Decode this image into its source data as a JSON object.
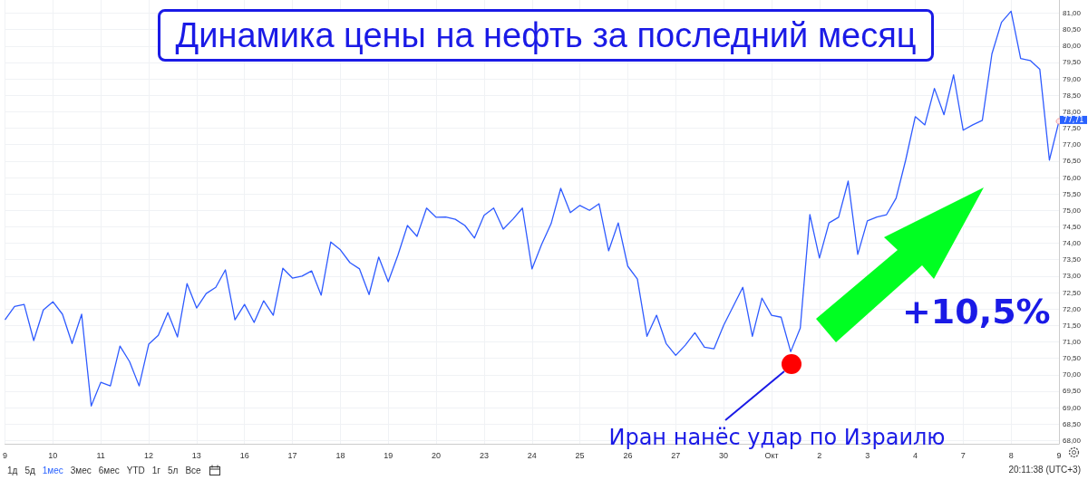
{
  "chart_data": {
    "type": "line",
    "title": "Динамика цены на нефть за последний месяц",
    "categories": [
      "9",
      null,
      null,
      null,
      null,
      "10",
      null,
      null,
      null,
      null,
      "11",
      null,
      null,
      null,
      null,
      "12",
      null,
      null,
      null,
      null,
      "13",
      null,
      null,
      null,
      null,
      "16",
      null,
      null,
      null,
      null,
      "17",
      null,
      null,
      null,
      null,
      "18",
      null,
      null,
      null,
      null,
      "19",
      null,
      null,
      null,
      null,
      "20",
      null,
      null,
      null,
      null,
      "23",
      null,
      null,
      null,
      null,
      "24",
      null,
      null,
      null,
      null,
      "25",
      null,
      null,
      null,
      null,
      "26",
      null,
      null,
      null,
      null,
      "27",
      null,
      null,
      null,
      null,
      "30",
      null,
      null,
      null,
      null,
      "Окт",
      null,
      null,
      null,
      null,
      "2",
      null,
      null,
      null,
      null,
      "3",
      null,
      null,
      null,
      null,
      "4",
      null,
      null,
      null,
      null,
      "7",
      null,
      null,
      null,
      null,
      "8",
      null,
      null,
      null,
      null,
      "9"
    ],
    "series": [
      {
        "color": "#2f5bff",
        "values": [
          71.67,
          72.08,
          72.14,
          71.04,
          71.97,
          72.22,
          71.84,
          70.95,
          71.84,
          69.05,
          69.77,
          69.66,
          70.87,
          70.4,
          69.66,
          70.93,
          71.2,
          71.89,
          71.15,
          72.77,
          72.03,
          72.47,
          72.66,
          73.19,
          71.67,
          72.14,
          71.59,
          72.25,
          71.81,
          73.24,
          72.94,
          73.0,
          73.16,
          72.42,
          74.04,
          73.8,
          73.41,
          73.22,
          72.44,
          73.58,
          72.83,
          73.63,
          74.54,
          74.21,
          75.07,
          74.79,
          74.8,
          74.73,
          74.54,
          74.16,
          74.85,
          75.07,
          74.43,
          74.73,
          75.07,
          73.22,
          73.96,
          74.6,
          75.67,
          74.93,
          75.15,
          75.0,
          75.2,
          73.77,
          74.62,
          73.3,
          72.91,
          71.17,
          71.81,
          70.95,
          70.59,
          70.9,
          71.28,
          70.84,
          70.79,
          71.5,
          72.08,
          72.66,
          71.17,
          72.33,
          71.81,
          71.75,
          70.7,
          71.42,
          74.87,
          73.55,
          74.62,
          74.79,
          75.89,
          73.66,
          74.68,
          74.8,
          74.87,
          75.37,
          76.53,
          77.85,
          77.6,
          78.71,
          77.91,
          79.12,
          77.44,
          77.6,
          77.74,
          79.76,
          80.72,
          81.06,
          79.62,
          79.56,
          79.29,
          76.53,
          77.71
        ]
      }
    ],
    "ylim": [
      67.9,
      81.4
    ],
    "yticks": [
      {
        "value": 68,
        "label": "68,00"
      },
      {
        "value": 68.5,
        "label": "68,50"
      },
      {
        "value": 69,
        "label": "69,00"
      },
      {
        "value": 69.5,
        "label": "69,50"
      },
      {
        "value": 70,
        "label": "70,00"
      },
      {
        "value": 70.5,
        "label": "70,50"
      },
      {
        "value": 71,
        "label": "71,00"
      },
      {
        "value": 71.5,
        "label": "71,50"
      },
      {
        "value": 72,
        "label": "72,00"
      },
      {
        "value": 72.5,
        "label": "72,50"
      },
      {
        "value": 73,
        "label": "73,00"
      },
      {
        "value": 73.5,
        "label": "73,50"
      },
      {
        "value": 74,
        "label": "74,00"
      },
      {
        "value": 74.5,
        "label": "74,50"
      },
      {
        "value": 75,
        "label": "75,00"
      },
      {
        "value": 75.5,
        "label": "75,50"
      },
      {
        "value": 76,
        "label": "76,00"
      },
      {
        "value": 76.5,
        "label": "76,50"
      },
      {
        "value": 77,
        "label": "77,00"
      },
      {
        "value": 77.5,
        "label": "77,50"
      },
      {
        "value": 78,
        "label": "78,00"
      },
      {
        "value": 78.5,
        "label": "78,50"
      },
      {
        "value": 79,
        "label": "79,00"
      },
      {
        "value": 79.5,
        "label": "79,50"
      },
      {
        "value": 80,
        "label": "80,00"
      },
      {
        "value": 80.5,
        "label": "80,50"
      },
      {
        "value": 81,
        "label": "81,00"
      }
    ],
    "grid": true,
    "marker": "none",
    "line_style": "solid",
    "annotations": [
      "Иран нанёс удар по Израилю",
      "77,71",
      "+10,5%",
      "1д",
      "5д",
      "1мес",
      "3мес",
      "6мес",
      "YTD",
      "1г",
      "5л",
      "Все",
      "20:11:38 (UTC+3)"
    ]
  }
}
